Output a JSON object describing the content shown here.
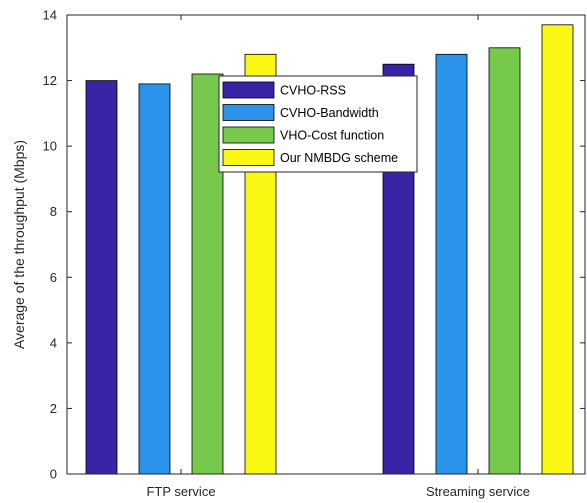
{
  "chart_data": {
    "type": "bar",
    "title": "",
    "xlabel": "",
    "ylabel": "Average of the throughput (Mbps)",
    "categories": [
      "FTP service",
      "Streaming service"
    ],
    "ylim": [
      0,
      14
    ],
    "yticks": [
      0,
      2,
      4,
      6,
      8,
      10,
      12,
      14
    ],
    "grid": false,
    "legend_position": "top-center",
    "series": [
      {
        "name": "CVHO-RSS",
        "color": "#3a23a5",
        "values": [
          12.0,
          12.5
        ]
      },
      {
        "name": "CVHO-Bandwidth",
        "color": "#2b93ea",
        "values": [
          11.9,
          12.8
        ]
      },
      {
        "name": "VHO-Cost function",
        "color": "#76c94b",
        "values": [
          12.2,
          13.0
        ]
      },
      {
        "name": "Our NMBDG scheme",
        "color": "#f9f713",
        "values": [
          12.8,
          13.7
        ]
      }
    ]
  }
}
